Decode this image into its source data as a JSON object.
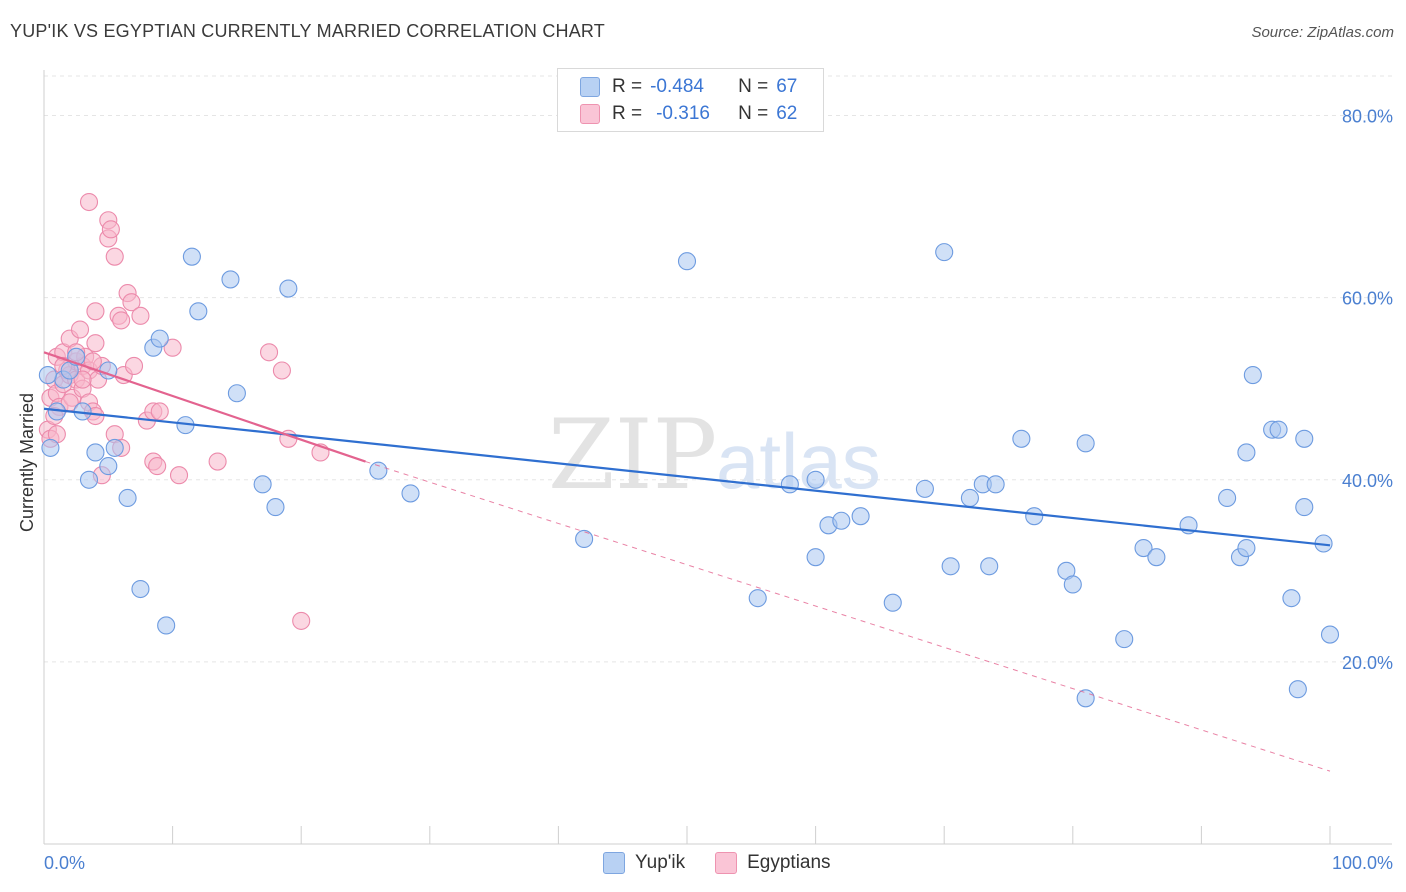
{
  "title": "YUP'IK VS EGYPTIAN CURRENTLY MARRIED CORRELATION CHART",
  "source": "Source: ZipAtlas.com",
  "watermark": {
    "zip": "ZIP",
    "atlas": "atlas"
  },
  "legend": {
    "rows": [
      {
        "r_label": "R =",
        "r_value": "-0.484",
        "n_label": "N =",
        "n_value": "67"
      },
      {
        "r_label": "R =",
        "r_value": "-0.316",
        "n_label": "N =",
        "n_value": "62"
      }
    ]
  },
  "bottom_legend": [
    "Yup'ik",
    "Egyptians"
  ],
  "colors": {
    "blue_fill": "#a9c7f0",
    "blue_stroke": "#6d9be0",
    "blue_line": "#2f6fd0",
    "pink_fill": "#f7b7cb",
    "pink_stroke": "#ec8aab",
    "pink_line": "#e3638f",
    "grid": "#e5e5e5",
    "tick_text": "#4a7fd0"
  },
  "chart_data": {
    "type": "scatter",
    "title": "YUP'IK VS EGYPTIAN CURRENTLY MARRIED CORRELATION CHART",
    "xlabel": "",
    "ylabel": "Currently Married",
    "xlim": [
      0,
      100
    ],
    "ylim": [
      0,
      85
    ],
    "x_tick_labels": [
      "0.0%",
      "100.0%"
    ],
    "y_ticks": [
      20,
      40,
      60,
      80
    ],
    "y_tick_labels": [
      "20.0%",
      "40.0%",
      "60.0%",
      "80.0%"
    ],
    "grid": true,
    "legend_position": "top-center",
    "series": [
      {
        "name": "Yup'ik",
        "color": "#a9c7f0",
        "points": [
          [
            0.5,
            43.5
          ],
          [
            1.0,
            47.5
          ],
          [
            1.5,
            51.0
          ],
          [
            2.0,
            52.0
          ],
          [
            2.5,
            53.5
          ],
          [
            3.0,
            47.5
          ],
          [
            3.5,
            40.0
          ],
          [
            4.0,
            43.0
          ],
          [
            5.0,
            41.5
          ],
          [
            5.5,
            43.5
          ],
          [
            5.0,
            52.0
          ],
          [
            6.5,
            38.0
          ],
          [
            7.5,
            28.0
          ],
          [
            8.5,
            54.5
          ],
          [
            9.0,
            55.5
          ],
          [
            9.5,
            24.0
          ],
          [
            11.0,
            46.0
          ],
          [
            11.5,
            64.5
          ],
          [
            12.0,
            58.5
          ],
          [
            14.5,
            62.0
          ],
          [
            15.0,
            49.5
          ],
          [
            17.0,
            39.5
          ],
          [
            18.0,
            37.0
          ],
          [
            19.0,
            61.0
          ],
          [
            26.0,
            41.0
          ],
          [
            28.5,
            38.5
          ],
          [
            42.0,
            33.5
          ],
          [
            50.0,
            64.0
          ],
          [
            55.5,
            27.0
          ],
          [
            58.0,
            39.5
          ],
          [
            60.0,
            40.0
          ],
          [
            60.0,
            31.5
          ],
          [
            61.0,
            35.0
          ],
          [
            62.0,
            35.5
          ],
          [
            63.5,
            36.0
          ],
          [
            66.0,
            26.5
          ],
          [
            68.5,
            39.0
          ],
          [
            70.0,
            65.0
          ],
          [
            70.5,
            30.5
          ],
          [
            72.0,
            38.0
          ],
          [
            73.0,
            39.5
          ],
          [
            73.5,
            30.5
          ],
          [
            74.0,
            39.5
          ],
          [
            76.0,
            44.5
          ],
          [
            77.0,
            36.0
          ],
          [
            79.5,
            30.0
          ],
          [
            80.0,
            28.5
          ],
          [
            81.0,
            44.0
          ],
          [
            81.0,
            16.0
          ],
          [
            84.0,
            22.5
          ],
          [
            85.5,
            32.5
          ],
          [
            86.5,
            31.5
          ],
          [
            89.0,
            35.0
          ],
          [
            92.0,
            38.0
          ],
          [
            93.0,
            31.5
          ],
          [
            93.5,
            43.0
          ],
          [
            93.5,
            32.5
          ],
          [
            94.0,
            51.5
          ],
          [
            95.5,
            45.5
          ],
          [
            96.0,
            45.5
          ],
          [
            97.0,
            27.0
          ],
          [
            97.5,
            17.0
          ],
          [
            98.0,
            37.0
          ],
          [
            98.0,
            44.5
          ],
          [
            99.5,
            33.0
          ],
          [
            100.0,
            23.0
          ],
          [
            0.3,
            51.5
          ]
        ],
        "trend": {
          "x": [
            0,
            100
          ],
          "y": [
            47.8,
            32.8
          ]
        }
      },
      {
        "name": "Egyptians",
        "color": "#f7b7cb",
        "points": [
          [
            0.3,
            45.5
          ],
          [
            0.5,
            49.0
          ],
          [
            0.5,
            44.5
          ],
          [
            0.8,
            51.0
          ],
          [
            1.0,
            53.5
          ],
          [
            1.0,
            49.5
          ],
          [
            1.2,
            48.0
          ],
          [
            1.5,
            54.0
          ],
          [
            1.5,
            50.5
          ],
          [
            1.8,
            52.0
          ],
          [
            2.0,
            55.5
          ],
          [
            2.0,
            51.5
          ],
          [
            2.2,
            49.0
          ],
          [
            2.5,
            53.0
          ],
          [
            2.5,
            51.0
          ],
          [
            2.8,
            56.5
          ],
          [
            3.0,
            52.5
          ],
          [
            3.0,
            50.0
          ],
          [
            3.2,
            53.5
          ],
          [
            3.5,
            48.5
          ],
          [
            3.5,
            52.0
          ],
          [
            3.8,
            47.5
          ],
          [
            4.0,
            58.5
          ],
          [
            4.0,
            55.0
          ],
          [
            4.2,
            51.0
          ],
          [
            4.5,
            52.5
          ],
          [
            4.5,
            40.5
          ],
          [
            5.0,
            68.5
          ],
          [
            5.0,
            66.5
          ],
          [
            5.2,
            67.5
          ],
          [
            5.5,
            45.0
          ],
          [
            5.5,
            64.5
          ],
          [
            5.8,
            58.0
          ],
          [
            6.0,
            57.5
          ],
          [
            6.2,
            51.5
          ],
          [
            6.5,
            60.5
          ],
          [
            6.8,
            59.5
          ],
          [
            7.0,
            52.5
          ],
          [
            7.5,
            58.0
          ],
          [
            8.0,
            46.5
          ],
          [
            8.5,
            42.0
          ],
          [
            8.5,
            47.5
          ],
          [
            8.8,
            41.5
          ],
          [
            9.0,
            47.5
          ],
          [
            10.0,
            54.5
          ],
          [
            10.5,
            40.5
          ],
          [
            13.5,
            42.0
          ],
          [
            17.5,
            54.0
          ],
          [
            18.5,
            52.0
          ],
          [
            19.0,
            44.5
          ],
          [
            20.0,
            24.5
          ],
          [
            21.5,
            43.0
          ],
          [
            3.5,
            70.5
          ],
          [
            1.0,
            45.0
          ],
          [
            2.0,
            48.5
          ],
          [
            3.0,
            51.0
          ],
          [
            4.0,
            47.0
          ],
          [
            6.0,
            43.5
          ],
          [
            1.5,
            52.5
          ],
          [
            2.5,
            54.0
          ],
          [
            0.8,
            47.0
          ],
          [
            3.8,
            53.0
          ]
        ],
        "trend": {
          "x": [
            0,
            25
          ],
          "y": [
            54.0,
            42.0
          ]
        },
        "trend_extended": {
          "x": [
            25,
            100
          ],
          "y": [
            42.0,
            8.0
          ]
        }
      }
    ]
  }
}
